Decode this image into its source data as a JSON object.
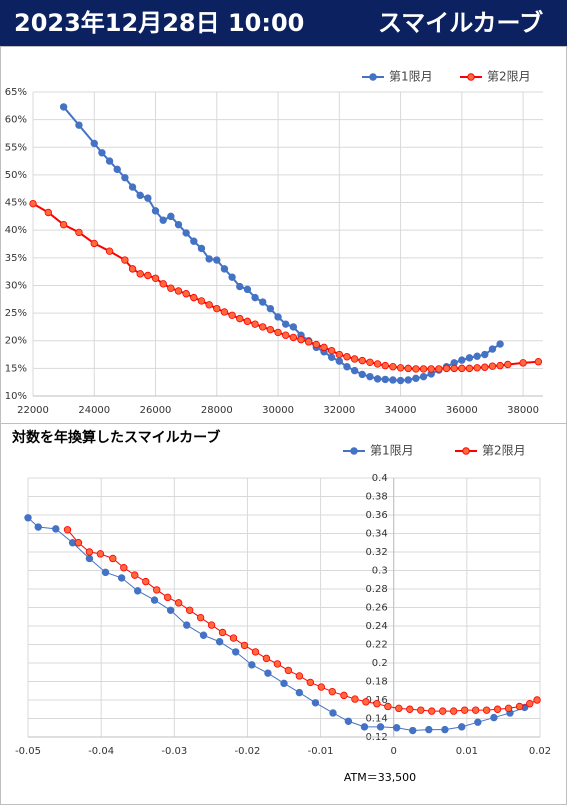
{
  "header": {
    "title": "2023年12月28日 10:00",
    "subtitle": "スマイルカーブ"
  },
  "chart_data": [
    {
      "type": "line",
      "legend": "top-right",
      "grid": true,
      "xlim": [
        22000,
        38650
      ],
      "xticks": [
        22000,
        24000,
        26000,
        28000,
        30000,
        32000,
        34000,
        36000,
        38000
      ],
      "ylim": [
        10,
        65
      ],
      "yticks": [
        {
          "value": 10,
          "label": "10%"
        },
        {
          "value": 15,
          "label": "15%"
        },
        {
          "value": 20,
          "label": "20%"
        },
        {
          "value": 25,
          "label": "25%"
        },
        {
          "value": 30,
          "label": "30%"
        },
        {
          "value": 35,
          "label": "35%"
        },
        {
          "value": 40,
          "label": "40%"
        },
        {
          "value": 45,
          "label": "45%"
        },
        {
          "value": 50,
          "label": "50%"
        },
        {
          "value": 55,
          "label": "55%"
        },
        {
          "value": 60,
          "label": "60%"
        },
        {
          "value": 65,
          "label": "65%"
        }
      ],
      "series": [
        {
          "name": "第1限月",
          "color": "#4472c4",
          "marker_fill": "#4472c4",
          "x": [
            23000,
            23500,
            24000,
            24250,
            24500,
            24750,
            25000,
            25250,
            25500,
            25750,
            26000,
            26250,
            26500,
            26750,
            27000,
            27250,
            27500,
            27750,
            28000,
            28250,
            28500,
            28750,
            29000,
            29250,
            29500,
            29750,
            30000,
            30250,
            30500,
            30750,
            31000,
            31250,
            31500,
            31750,
            32000,
            32250,
            32500,
            32750,
            33000,
            33250,
            33500,
            33750,
            34000,
            34250,
            34500,
            34750,
            35000,
            35250,
            35500,
            35750,
            36000,
            36250,
            36500,
            36750,
            37000,
            37250
          ],
          "values": [
            62.3,
            59,
            55.7,
            54,
            52.5,
            51,
            49.5,
            47.8,
            46.3,
            45.8,
            43.5,
            41.8,
            42.5,
            41,
            39.5,
            38,
            36.7,
            34.8,
            34.6,
            33,
            31.5,
            29.8,
            29.3,
            27.8,
            27,
            25.8,
            24.3,
            23,
            22.5,
            21,
            20,
            18.8,
            18,
            17,
            16.3,
            15.3,
            14.6,
            13.9,
            13.5,
            13.1,
            13.0,
            12.9,
            12.8,
            12.9,
            13.2,
            13.5,
            14.0,
            14.7,
            15.3,
            16.0,
            16.5,
            16.9,
            17.2,
            17.5,
            18.5,
            19.4
          ]
        },
        {
          "name": "第2限月",
          "color": "#ff0000",
          "marker_fill": "#ff6a3d",
          "x": [
            22000,
            22500,
            23000,
            23500,
            24000,
            24500,
            25000,
            25250,
            25500,
            25750,
            26000,
            26250,
            26500,
            26750,
            27000,
            27250,
            27500,
            27750,
            28000,
            28250,
            28500,
            28750,
            29000,
            29250,
            29500,
            29750,
            30000,
            30250,
            30500,
            30750,
            31000,
            31250,
            31500,
            31750,
            32000,
            32250,
            32500,
            32750,
            33000,
            33250,
            33500,
            33750,
            34000,
            34250,
            34500,
            34750,
            35000,
            35250,
            35500,
            35750,
            36000,
            36250,
            36500,
            36750,
            37000,
            37250,
            37500,
            38000,
            38500
          ],
          "values": [
            44.8,
            43.2,
            41,
            39.6,
            37.6,
            36.2,
            34.6,
            33,
            32.1,
            31.8,
            31.3,
            30.3,
            29.5,
            29,
            28.5,
            27.8,
            27.2,
            26.5,
            25.8,
            25.2,
            24.6,
            24,
            23.5,
            23,
            22.5,
            22,
            21.5,
            21,
            20.6,
            20.2,
            19.8,
            19.3,
            18.8,
            18.2,
            17.5,
            17.1,
            16.7,
            16.4,
            16.1,
            15.8,
            15.5,
            15.3,
            15.1,
            15.0,
            14.9,
            14.9,
            14.9,
            14.9,
            15.0,
            15.0,
            15.0,
            15.0,
            15.1,
            15.2,
            15.4,
            15.5,
            15.7,
            16.0,
            16.2
          ]
        }
      ]
    },
    {
      "type": "line",
      "title": "対数を年換算したスマイルカーブ",
      "legend": "top-right",
      "grid": true,
      "annotation": "ATM＝33,500",
      "xlim": [
        -0.05,
        0.02
      ],
      "xticks": [
        -0.05,
        -0.04,
        -0.03,
        -0.02,
        -0.01,
        0,
        0.01,
        0.02
      ],
      "ylim": [
        0.12,
        0.4
      ],
      "yticks": [
        0.12,
        0.14,
        0.16,
        0.18,
        0.2,
        0.22,
        0.24,
        0.26,
        0.28,
        0.3,
        0.32,
        0.34,
        0.36,
        0.38,
        0.4
      ],
      "series": [
        {
          "name": "第1限月",
          "color": "#4472c4",
          "marker_fill": "#4472c4",
          "x": [
            -0.05,
            -0.0486,
            -0.0462,
            -0.0439,
            -0.0416,
            -0.0394,
            -0.0372,
            -0.035,
            -0.0327,
            -0.0305,
            -0.0283,
            -0.026,
            -0.0238,
            -0.0216,
            -0.0194,
            -0.0172,
            -0.015,
            -0.0129,
            -0.0107,
            -0.0083,
            -0.0062,
            -0.004,
            -0.0018,
            0.0004,
            0.0026,
            0.0048,
            0.007,
            0.0093,
            0.0115,
            0.0137,
            0.0159,
            0.0179
          ],
          "values": [
            0.357,
            0.347,
            0.345,
            0.33,
            0.313,
            0.298,
            0.292,
            0.278,
            0.268,
            0.257,
            0.241,
            0.23,
            0.223,
            0.212,
            0.198,
            0.189,
            0.178,
            0.168,
            0.157,
            0.146,
            0.137,
            0.131,
            0.131,
            0.13,
            0.127,
            0.128,
            0.128,
            0.131,
            0.136,
            0.141,
            0.146,
            0.152
          ]
        },
        {
          "name": "第2限月",
          "color": "#ff0000",
          "marker_fill": "#ff6a3d",
          "x": [
            -0.0446,
            -0.0431,
            -0.0416,
            -0.0401,
            -0.0384,
            -0.0369,
            -0.0354,
            -0.0339,
            -0.0324,
            -0.0309,
            -0.0294,
            -0.0279,
            -0.0264,
            -0.0249,
            -0.0234,
            -0.0219,
            -0.0204,
            -0.0189,
            -0.0174,
            -0.0159,
            -0.0144,
            -0.0129,
            -0.0114,
            -0.0099,
            -0.0084,
            -0.0068,
            -0.0053,
            -0.0038,
            -0.0023,
            -0.0008,
            0.0007,
            0.0022,
            0.0037,
            0.0052,
            0.0067,
            0.0082,
            0.0097,
            0.0112,
            0.0127,
            0.0142,
            0.0157,
            0.0172,
            0.0186,
            0.0196
          ],
          "values": [
            0.344,
            0.33,
            0.32,
            0.318,
            0.313,
            0.303,
            0.295,
            0.288,
            0.279,
            0.271,
            0.265,
            0.257,
            0.249,
            0.241,
            0.233,
            0.227,
            0.219,
            0.212,
            0.205,
            0.199,
            0.192,
            0.186,
            0.179,
            0.174,
            0.169,
            0.165,
            0.161,
            0.158,
            0.156,
            0.153,
            0.151,
            0.15,
            0.149,
            0.148,
            0.148,
            0.148,
            0.149,
            0.149,
            0.149,
            0.15,
            0.151,
            0.153,
            0.156,
            0.16
          ]
        }
      ]
    }
  ]
}
